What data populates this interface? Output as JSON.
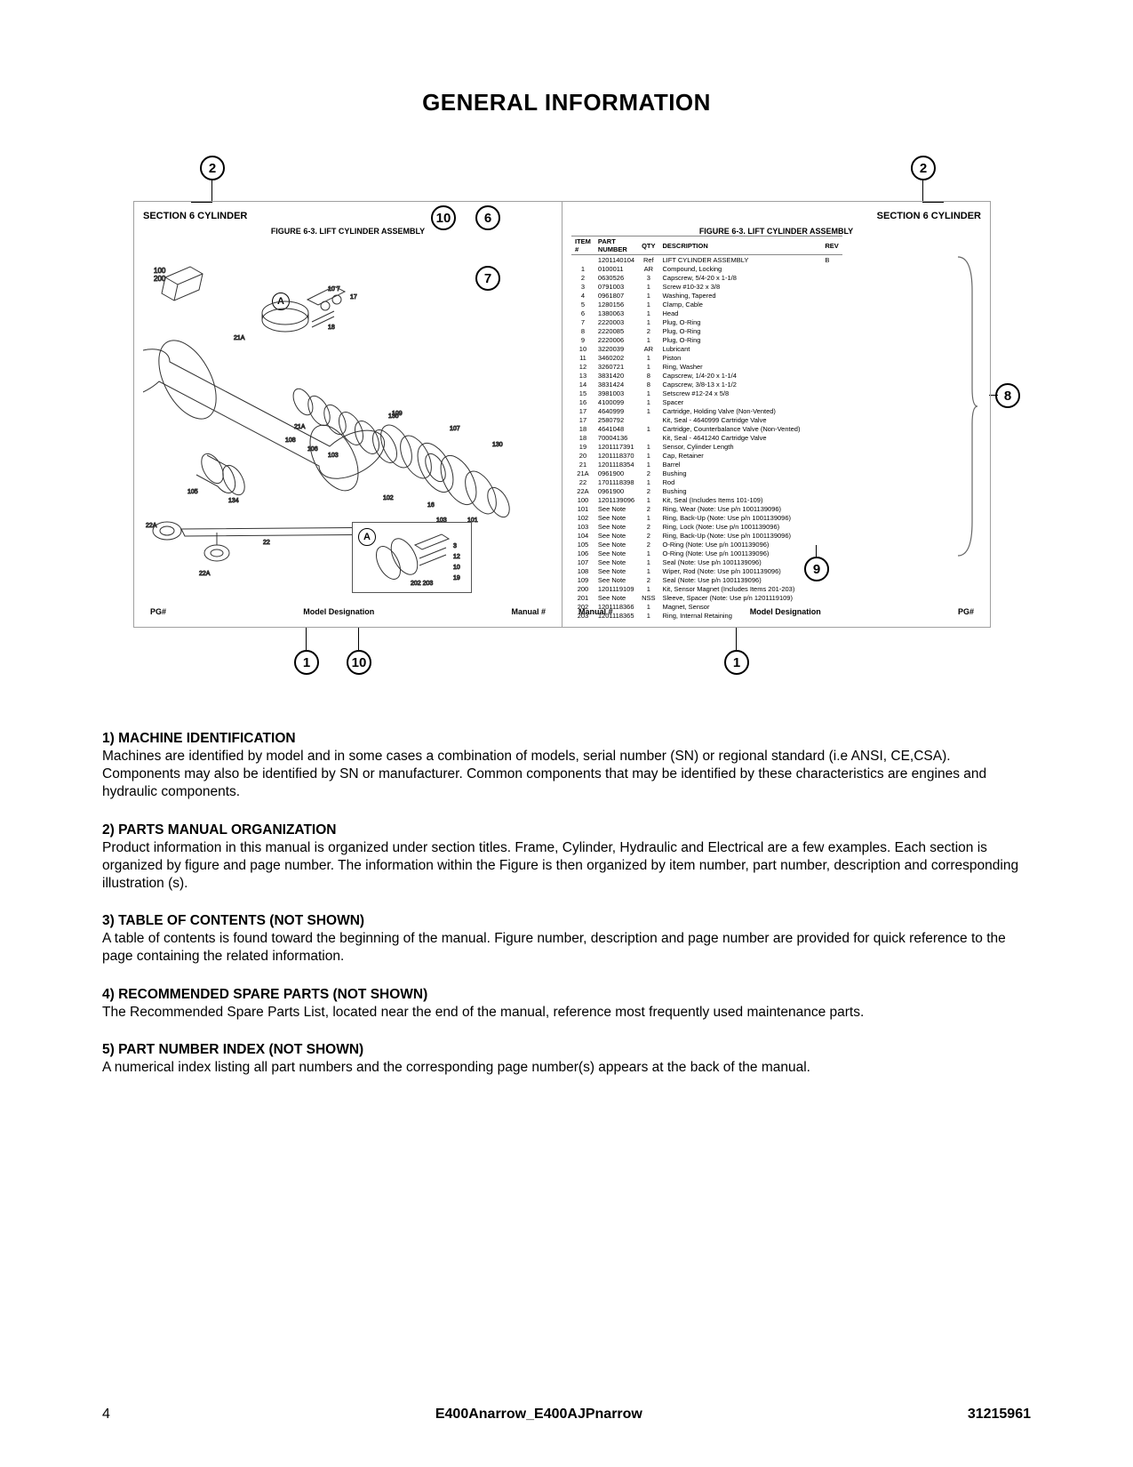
{
  "title": "GENERAL INFORMATION",
  "callouts": {
    "top_left": "2",
    "top_right": "2",
    "c10_top": "10",
    "c6": "6",
    "c7": "7",
    "c8": "8",
    "c9": "9",
    "c1_left": "1",
    "c10_bottom": "10",
    "c1_right": "1"
  },
  "left_panel": {
    "section": "SECTION 6   CYLINDER",
    "figure_title": "FIGURE 6-3.  LIFT CYLINDER ASSEMBLY",
    "a_label": "A",
    "footer_left": "PG#",
    "footer_mid": "Model Designation",
    "footer_right": "Manual #",
    "dim1": "100",
    "dim2": "200"
  },
  "right_panel": {
    "section": "SECTION 6   CYLINDER",
    "figure_title": "FIGURE 6-3.  LIFT CYLINDER ASSEMBLY",
    "footer_left": "Manual #",
    "footer_mid": "Model Designation",
    "footer_right": "PG#",
    "headers": [
      "ITEM #",
      "PART NUMBER",
      "QTY",
      "DESCRIPTION",
      "REV"
    ],
    "rows": [
      [
        "",
        "1201140104",
        "Ref",
        "LIFT CYLINDER ASSEMBLY",
        "B"
      ],
      [
        "1",
        "0100011",
        "AR",
        "Compound, Locking",
        ""
      ],
      [
        "2",
        "0630526",
        "3",
        "Capscrew, 5/4-20 x 1-1/8",
        ""
      ],
      [
        "3",
        "0791003",
        "1",
        "Screw #10-32 x 3/8",
        ""
      ],
      [
        "4",
        "0961807",
        "1",
        "Washing, Tapered",
        ""
      ],
      [
        "5",
        "1280156",
        "1",
        "Clamp, Cable",
        ""
      ],
      [
        "6",
        "1380063",
        "1",
        "Head",
        ""
      ],
      [
        "7",
        "2220003",
        "1",
        "Plug, O-Ring",
        ""
      ],
      [
        "8",
        "2220085",
        "2",
        "Plug, O-Ring",
        ""
      ],
      [
        "9",
        "2220006",
        "1",
        "Plug, O-Ring",
        ""
      ],
      [
        "10",
        "3220039",
        "AR",
        "Lubricant",
        ""
      ],
      [
        "11",
        "3460202",
        "1",
        "Piston",
        ""
      ],
      [
        "12",
        "3260721",
        "1",
        "Ring, Washer",
        ""
      ],
      [
        "13",
        "3831420",
        "8",
        "Capscrew, 1/4-20 x 1-1/4",
        ""
      ],
      [
        "14",
        "3831424",
        "8",
        "Capscrew, 3/8-13 x 1-1/2",
        ""
      ],
      [
        "15",
        "3981003",
        "1",
        "Setscrew #12-24 x 5/8",
        ""
      ],
      [
        "16",
        "4100099",
        "1",
        "Spacer",
        ""
      ],
      [
        "17",
        "4640999",
        "1",
        "Cartridge, Holding Valve (Non-Vented)",
        ""
      ],
      [
        "17",
        "2580792",
        "",
        "Kit, Seal - 4640999 Cartridge Valve",
        ""
      ],
      [
        "18",
        "4641048",
        "1",
        "Cartridge, Counterbalance Valve (Non-Vented)",
        ""
      ],
      [
        "18",
        "70004136",
        "",
        "Kit, Seal - 4641240 Cartridge Valve",
        ""
      ],
      [
        "19",
        "1201117391",
        "1",
        "Sensor, Cylinder Length",
        ""
      ],
      [
        "20",
        "1201118370",
        "1",
        "Cap, Retainer",
        ""
      ],
      [
        "21",
        "1201118354",
        "1",
        "Barrel",
        ""
      ],
      [
        "21A",
        "0961900",
        "2",
        "Bushing",
        ""
      ],
      [
        "22",
        "1701118398",
        "1",
        "Rod",
        ""
      ],
      [
        "22A",
        "0961900",
        "2",
        "Bushing",
        ""
      ],
      [
        "100",
        "1201139096",
        "1",
        "Kit, Seal (Includes Items 101-109)",
        ""
      ],
      [
        "101",
        "See Note",
        "2",
        "Ring, Wear (Note: Use p/n 1001139096)",
        ""
      ],
      [
        "102",
        "See Note",
        "1",
        "Ring, Back-Up (Note: Use p/n 1001139096)",
        ""
      ],
      [
        "103",
        "See Note",
        "2",
        "Ring, Lock (Note: Use p/n 1001139096)",
        ""
      ],
      [
        "104",
        "See Note",
        "2",
        "Ring, Back-Up (Note: Use p/n 1001139096)",
        ""
      ],
      [
        "105",
        "See Note",
        "2",
        "O-Ring (Note: Use p/n 1001139096)",
        ""
      ],
      [
        "106",
        "See Note",
        "1",
        "O-Ring (Note: Use p/n 1001139096)",
        ""
      ],
      [
        "107",
        "See Note",
        "1",
        "Seal (Note: Use p/n 1001139096)",
        ""
      ],
      [
        "108",
        "See Note",
        "1",
        "Wiper, Rod (Note: Use p/n 1001139096)",
        ""
      ],
      [
        "109",
        "See Note",
        "2",
        "Seal (Note: Use p/n 1001139096)",
        ""
      ],
      [
        "200",
        "1201119109",
        "1",
        "Kit, Sensor Magnet (Includes Items 201-203)",
        ""
      ],
      [
        "201",
        "See Note",
        "NSS",
        "Sleeve, Spacer (Note: Use p/n 1201119109)",
        ""
      ],
      [
        "202",
        "1201118366",
        "1",
        "Magnet, Sensor",
        ""
      ],
      [
        "203",
        "1201118365",
        "1",
        "Ring, Internal Retaining",
        ""
      ]
    ]
  },
  "sections": [
    {
      "head": "1) MACHINE IDENTIFICATION",
      "body": "Machines are identified by model and in some cases a combination of models, serial number (SN) or regional standard (i.e ANSI, CE,CSA). Components may also be identified by SN or manufacturer. Common components that may be identified by these characteristics are engines and hydraulic components."
    },
    {
      "head": "2) PARTS MANUAL ORGANIZATION",
      "body": "Product information in this manual is organized under section titles. Frame, Cylinder, Hydraulic and Electrical are a few examples. Each section is organized by figure and page number. The information within the Figure is then organized by item number, part number, description and corresponding illustration (s)."
    },
    {
      "head": "3) TABLE OF CONTENTS (NOT SHOWN)",
      "body": "A table of contents is found toward the beginning of the manual. Figure number, description and page number are provided for quick reference to the page containing the related information."
    },
    {
      "head": "4) RECOMMENDED SPARE PARTS (NOT SHOWN)",
      "body": "The Recommended Spare Parts List, located near the end of the manual, reference most frequently used maintenance parts."
    },
    {
      "head": "5) PART NUMBER INDEX (NOT SHOWN)",
      "body": "A numerical index listing all part numbers and the corresponding page number(s) appears at the back of the manual."
    }
  ],
  "footer": {
    "page_num": "4",
    "model": "E400Anarrow_E400AJPnarrow",
    "doc": "31215961"
  }
}
